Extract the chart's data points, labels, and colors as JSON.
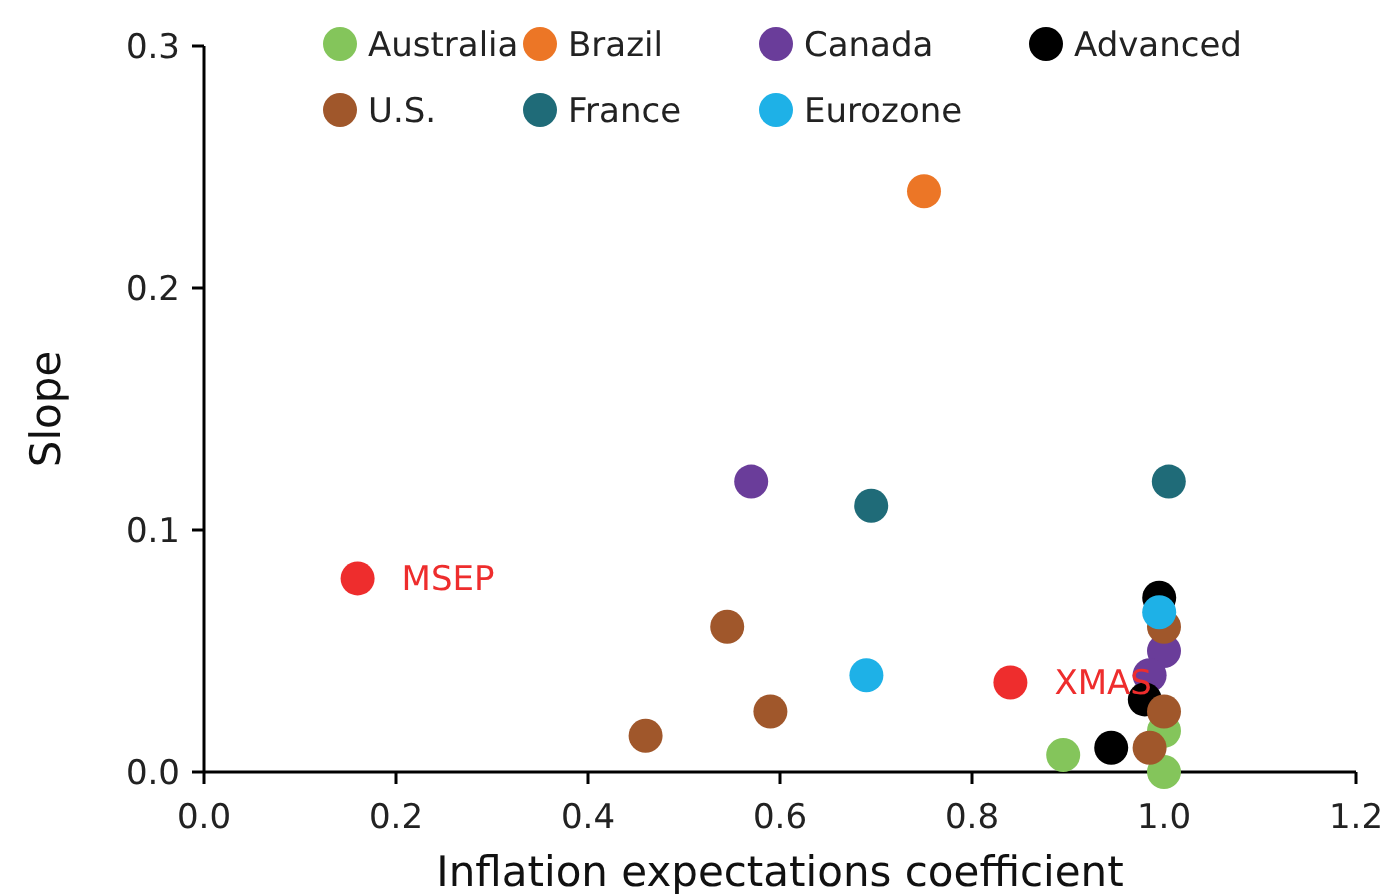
{
  "chart_data": {
    "type": "scatter",
    "xlabel": "Inflation expectations coefficient",
    "ylabel": "Slope",
    "xlim": [
      0,
      1.2
    ],
    "xticks": [
      {
        "value": 0,
        "label": "0.0"
      },
      0.2,
      0.4,
      0.6,
      0.8,
      {
        "value": 1,
        "label": "1.0"
      },
      1.2
    ],
    "ylim": [
      0,
      0.3
    ],
    "yticks": [
      {
        "value": 0,
        "label": "0.0"
      },
      0.1,
      0.2,
      0.3
    ],
    "grid": false,
    "legend": "top",
    "marker": "circle",
    "series": [
      {
        "name": "Australia",
        "color": "#84c55b",
        "x": [
          0.895,
          1.0,
          1.0
        ],
        "values": [
          0.007,
          0.017,
          0.0
        ]
      },
      {
        "name": "Brazil",
        "color": "#ec7626",
        "x": [
          0.75
        ],
        "values": [
          0.24
        ]
      },
      {
        "name": "Canada",
        "color": "#6a3d9a",
        "x": [
          0.57,
          1.0,
          0.985
        ],
        "values": [
          0.12,
          0.05,
          0.04
        ]
      },
      {
        "name": "Advanced",
        "color": "#000000",
        "x": [
          0.995,
          0.98,
          0.945
        ],
        "values": [
          0.072,
          0.03,
          0.01
        ]
      },
      {
        "name": "U.S.",
        "color": "#a0572b",
        "x": [
          0.545,
          0.46,
          0.59,
          1.0,
          1.0,
          0.985
        ],
        "values": [
          0.06,
          0.015,
          0.025,
          0.06,
          0.025,
          0.01
        ]
      },
      {
        "name": "France",
        "color": "#1f6b78",
        "x": [
          0.695,
          1.005
        ],
        "values": [
          0.11,
          0.12
        ]
      },
      {
        "name": "Eurozone",
        "color": "#1eb1e7",
        "x": [
          0.69,
          0.995
        ],
        "values": [
          0.04,
          0.066
        ]
      },
      {
        "color": "#ee2d2d",
        "x": [
          0.16,
          0.84
        ],
        "values": [
          0.08,
          0.037
        ]
      }
    ],
    "annotations": [
      {
        "text": "MSEP",
        "x": 0.16,
        "y": 0.08
      },
      {
        "text": "XMAS",
        "x": 0.84,
        "y": 0.037
      }
    ]
  }
}
